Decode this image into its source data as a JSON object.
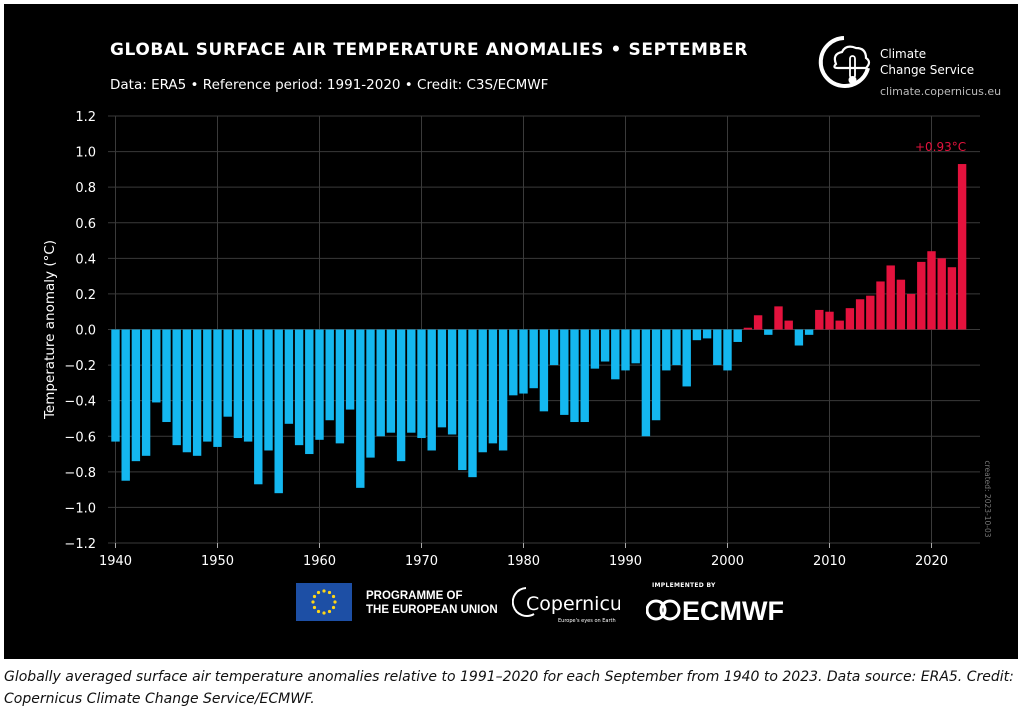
{
  "header": {
    "title": "GLOBAL SURFACE AIR TEMPERATURE ANOMALIES • SEPTEMBER",
    "subtitle": "Data: ERA5 • Reference period: 1991-2020 • Credit: C3S/ECMWF"
  },
  "branding": {
    "c3s_name_line1": "Climate",
    "c3s_name_line2": "Change Service",
    "c3s_url": "climate.copernicus.eu",
    "eu_line1": "PROGRAMME OF",
    "eu_line2": "THE EUROPEAN UNION",
    "copernicus_name": "Copernicus",
    "copernicus_tagline": "Europe's eyes on Earth",
    "ecmwf_implemented": "IMPLEMENTED BY",
    "ecmwf_name": "ECMWF"
  },
  "caption": "Globally averaged surface air temperature anomalies relative to 1991–2020 for each September from 1940 to 2023. Data source: ERA5. Credit: Copernicus Climate Change Service/ECMWF.",
  "colors": {
    "background": "#000000",
    "negative": "#14b7f0",
    "positive": "#e3123d",
    "grid": "#3a3a3a",
    "text": "#ffffff"
  },
  "chart_data": {
    "type": "bar",
    "title": "GLOBAL SURFACE AIR TEMPERATURE ANOMALIES • SEPTEMBER",
    "xlabel": "",
    "ylabel": "Temperature anomaly (°C)",
    "ylim": [
      -1.2,
      1.2
    ],
    "y_ticks": [
      1.2,
      1.0,
      0.8,
      0.6,
      0.4,
      0.2,
      0.0,
      -0.2,
      -0.4,
      -0.6,
      -0.8,
      -1.0,
      -1.2
    ],
    "y_tick_labels": [
      "1.2",
      "1.0",
      "0.8",
      "0.6",
      "0.4",
      "0.2",
      "0.0",
      "−0.2",
      "−0.4",
      "−0.6",
      "−0.8",
      "−1.0",
      "−1.2"
    ],
    "x_ticks": [
      1940,
      1950,
      1960,
      1970,
      1980,
      1990,
      2000,
      2010,
      2020
    ],
    "grid": true,
    "start_year": 1940,
    "values": [
      -0.63,
      -0.85,
      -0.74,
      -0.71,
      -0.41,
      -0.52,
      -0.65,
      -0.69,
      -0.71,
      -0.63,
      -0.66,
      -0.49,
      -0.61,
      -0.63,
      -0.87,
      -0.68,
      -0.92,
      -0.53,
      -0.65,
      -0.7,
      -0.62,
      -0.51,
      -0.64,
      -0.45,
      -0.89,
      -0.72,
      -0.6,
      -0.58,
      -0.74,
      -0.58,
      -0.61,
      -0.68,
      -0.55,
      -0.59,
      -0.79,
      -0.83,
      -0.69,
      -0.64,
      -0.68,
      -0.37,
      -0.36,
      -0.33,
      -0.46,
      -0.2,
      -0.48,
      -0.52,
      -0.52,
      -0.22,
      -0.18,
      -0.28,
      -0.23,
      -0.19,
      -0.6,
      -0.51,
      -0.23,
      -0.2,
      -0.32,
      -0.06,
      -0.05,
      -0.2,
      -0.23,
      -0.07,
      0.01,
      0.08,
      -0.03,
      0.13,
      0.05,
      -0.09,
      -0.03,
      0.11,
      0.1,
      0.05,
      0.12,
      0.17,
      0.19,
      0.27,
      0.36,
      0.28,
      0.2,
      0.38,
      0.44,
      0.4,
      0.35,
      0.93
    ],
    "annotation": "+0.93°C",
    "side_note": "created: 2023-10-03"
  }
}
